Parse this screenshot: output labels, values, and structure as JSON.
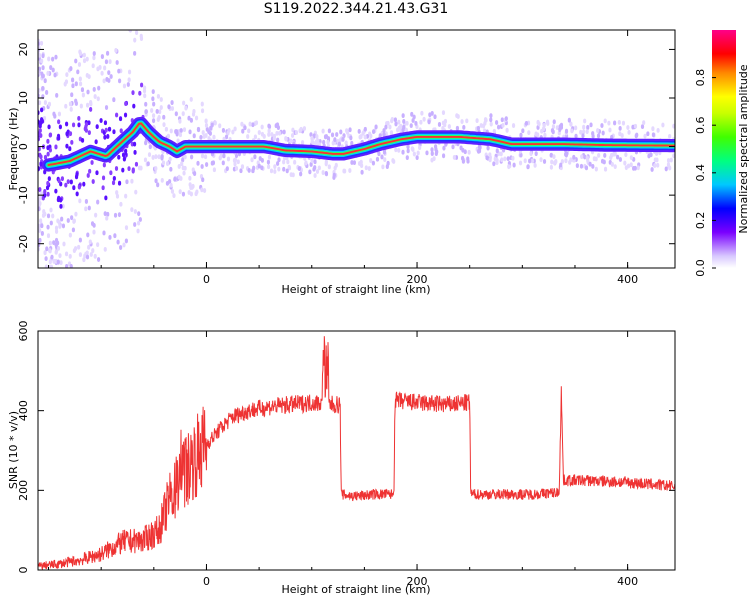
{
  "title": "S119.2022.344.21.43.G31",
  "colors": {
    "snr_line": "#ee3333",
    "axis": "#000000"
  },
  "chart_data": [
    {
      "type": "heatmap",
      "xlabel": "Height of straight line (km)",
      "ylabel": "Frequency (Hz)",
      "xlim": [
        -160,
        445
      ],
      "ylim": [
        -25,
        24
      ],
      "x_ticks": [
        0,
        200,
        400
      ],
      "y_ticks": [
        -20,
        -10,
        0,
        10,
        20
      ],
      "colorbar": {
        "label": "Normalized spectral amplitude",
        "range": [
          0.0,
          1.0
        ],
        "ticks": [
          "0.0",
          "0.2",
          "0.4",
          "0.6",
          "0.8"
        ]
      },
      "ridge": {
        "x": [
          -155,
          -130,
          -110,
          -95,
          -80,
          -70,
          -63,
          -55,
          -45,
          -35,
          -28,
          -20,
          0,
          30,
          45,
          55,
          75,
          100,
          120,
          130,
          150,
          165,
          185,
          200,
          240,
          270,
          290,
          340,
          380,
          445
        ],
        "freq": [
          -4,
          -3,
          -1,
          -2,
          1,
          3,
          5,
          3,
          1,
          0,
          -1,
          0,
          0,
          0,
          0,
          0,
          -0.8,
          -1,
          -1.5,
          -1.5,
          -0.5,
          0.5,
          1.5,
          2,
          2,
          1.5,
          0.5,
          0.5,
          0.3,
          0.2
        ]
      }
    },
    {
      "type": "line",
      "xlabel": "Height of straight line (km)",
      "ylabel": "SNR (10 * v/v)",
      "xlim": [
        -160,
        445
      ],
      "ylim": [
        0,
        600
      ],
      "x_ticks": [
        0,
        200,
        400
      ],
      "y_ticks": [
        0,
        200,
        400,
        600
      ],
      "series": [
        {
          "x": [
            -160,
            -140,
            -120,
            -100,
            -80,
            -60,
            -45,
            -35,
            -25,
            -15,
            -5,
            5,
            15,
            25,
            40,
            60,
            80,
            100,
            112,
            120,
            127,
            128,
            140,
            160,
            178,
            179,
            200,
            230,
            250,
            251,
            280,
            310,
            335,
            337,
            339,
            360,
            400,
            445
          ],
          "y": [
            10,
            15,
            25,
            40,
            70,
            75,
            100,
            180,
            220,
            270,
            300,
            330,
            360,
            385,
            400,
            410,
            415,
            420,
            420,
            415,
            415,
            190,
            185,
            190,
            190,
            425,
            420,
            415,
            420,
            190,
            190,
            190,
            195,
            450,
            225,
            225,
            220,
            210
          ]
        }
      ]
    }
  ]
}
